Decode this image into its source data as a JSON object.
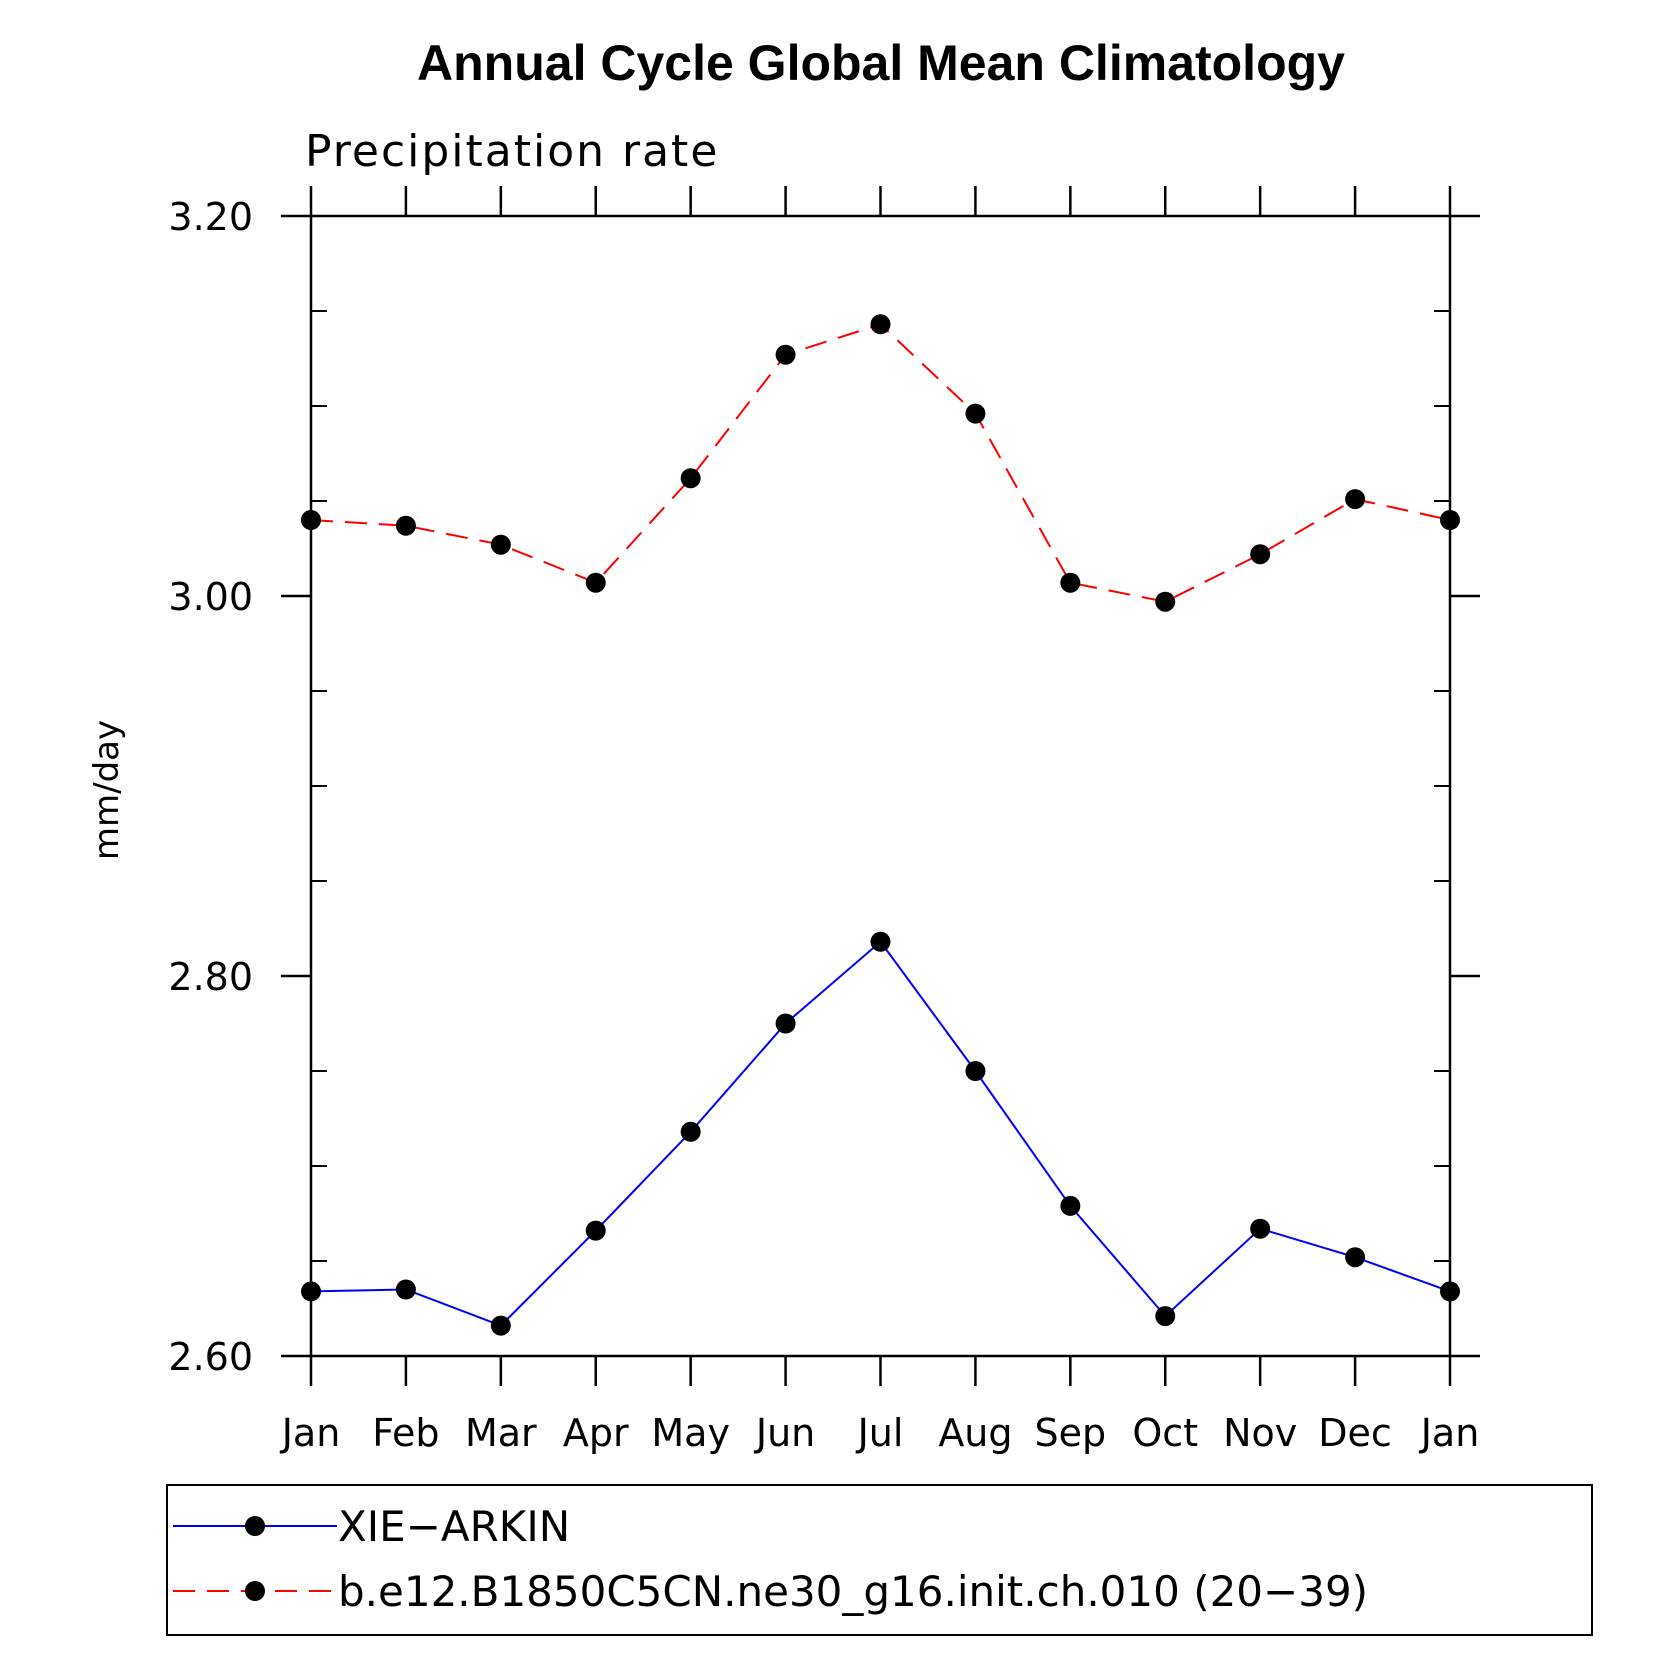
{
  "chart_data": {
    "type": "line",
    "title": "Annual Cycle Global Mean Climatology",
    "subtitle": "Precipitation rate",
    "xlabel": "",
    "ylabel": "mm/day",
    "categories": [
      "Jan",
      "Feb",
      "Mar",
      "Apr",
      "May",
      "Jun",
      "Jul",
      "Aug",
      "Sep",
      "Oct",
      "Nov",
      "Dec",
      "Jan"
    ],
    "ylim": [
      2.6,
      3.2
    ],
    "yticks": [
      2.6,
      2.8,
      3.0,
      3.2
    ],
    "ytick_labels": [
      "2.60",
      "2.80",
      "3.00",
      "3.20"
    ],
    "y_minor_step": 0.05,
    "grid": false,
    "legend_position": "bottom",
    "series": [
      {
        "name": "XIE−ARKIN",
        "color": "#0000ff",
        "style": "solid",
        "marker": "filled-circle",
        "values": [
          2.634,
          2.635,
          2.616,
          2.666,
          2.718,
          2.775,
          2.818,
          2.75,
          2.679,
          2.621,
          2.667,
          2.652,
          2.634
        ]
      },
      {
        "name": "b.e12.B1850C5CN.ne30_g16.init.ch.010 (20−39)",
        "color": "#ff0000",
        "style": "dashed",
        "marker": "filled-circle",
        "values": [
          3.04,
          3.037,
          3.027,
          3.007,
          3.062,
          3.127,
          3.143,
          3.096,
          3.007,
          2.997,
          3.022,
          3.051,
          3.04
        ]
      }
    ]
  }
}
